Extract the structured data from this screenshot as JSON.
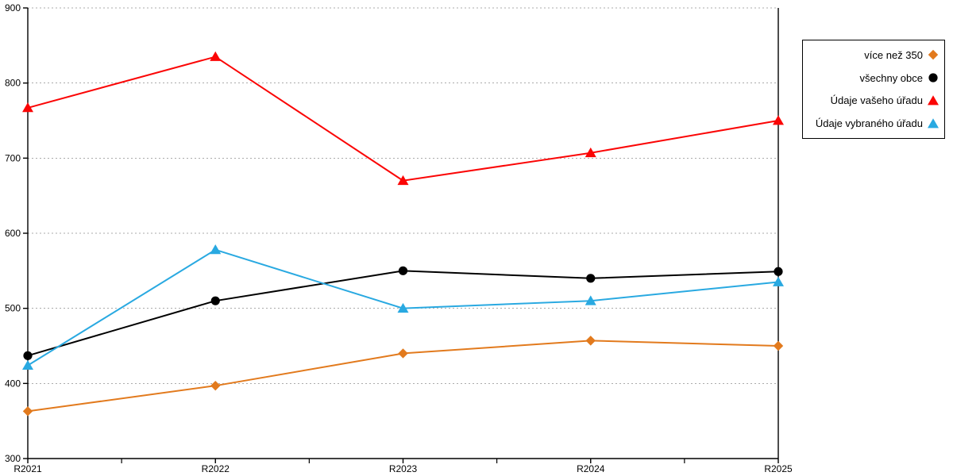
{
  "chart_data": {
    "type": "line",
    "title": "",
    "xlabel": "",
    "ylabel": "",
    "categories": [
      "R2021",
      "R2022",
      "R2023",
      "R2024",
      "R2025"
    ],
    "series": [
      {
        "name": "více než 350",
        "marker": "diamond",
        "color": "#E27A1D",
        "values": [
          363,
          397,
          440,
          457,
          450
        ]
      },
      {
        "name": "všechny obce",
        "marker": "circle",
        "color": "#000000",
        "values": [
          437,
          510,
          550,
          540,
          549
        ]
      },
      {
        "name": "Údaje vašeho úřadu",
        "marker": "triangle",
        "color": "#FB0505",
        "values": [
          767,
          835,
          670,
          707,
          750
        ]
      },
      {
        "name": "Údaje vybraného úřadu",
        "marker": "triangle",
        "color": "#29A9E1",
        "values": [
          424,
          578,
          500,
          510,
          535
        ]
      }
    ],
    "ylim": [
      300,
      900
    ],
    "ytick_step": 100,
    "yticks": [
      300,
      400,
      500,
      600,
      700,
      800,
      900
    ],
    "grid": "horizontal-dotted",
    "grid_color": "#ababab",
    "axis_color": "#000000",
    "background": "#ffffff",
    "legend_position": "right"
  }
}
